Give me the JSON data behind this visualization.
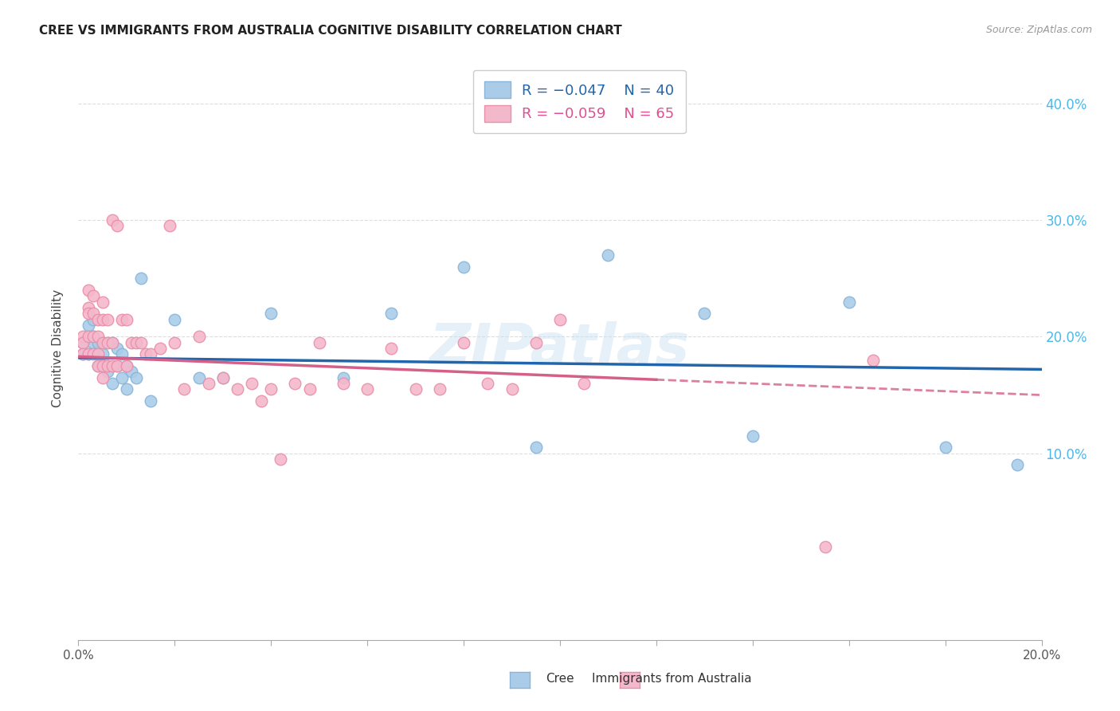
{
  "title": "CREE VS IMMIGRANTS FROM AUSTRALIA COGNITIVE DISABILITY CORRELATION CHART",
  "source": "Source: ZipAtlas.com",
  "xlabel_cree": "Cree",
  "xlabel_aus": "Immigrants from Australia",
  "ylabel": "Cognitive Disability",
  "xlim": [
    0.0,
    0.2
  ],
  "ylim": [
    -0.06,
    0.44
  ],
  "xticks": [
    0.0,
    0.02,
    0.04,
    0.06,
    0.08,
    0.1,
    0.12,
    0.14,
    0.16,
    0.18,
    0.2
  ],
  "xtick_labels": [
    "0.0%",
    "",
    "",
    "",
    "",
    "",
    "",
    "",
    "",
    "",
    "20.0%"
  ],
  "yticks_right": [
    0.1,
    0.2,
    0.3,
    0.4
  ],
  "legend_r_cree": "R = -0.047",
  "legend_n_cree": "N = 40",
  "legend_r_aus": "R = -0.059",
  "legend_n_aus": "N = 65",
  "color_cree": "#aacce8",
  "color_cree_line": "#8ab4d8",
  "color_aus": "#f4b8cc",
  "color_aus_line": "#e890a8",
  "color_trend_cree": "#2166ac",
  "color_trend_aus": "#d4608a",
  "color_right_axis": "#4db8e8",
  "color_title": "#222222",
  "color_source": "#999999",
  "background_color": "#ffffff",
  "grid_color": "#dddddd",
  "trend_cree_y0": 0.182,
  "trend_cree_y1": 0.172,
  "trend_aus_y0": 0.183,
  "trend_aus_y1": 0.15,
  "cree_x": [
    0.001,
    0.001,
    0.002,
    0.002,
    0.003,
    0.003,
    0.003,
    0.004,
    0.004,
    0.005,
    0.005,
    0.005,
    0.006,
    0.006,
    0.007,
    0.007,
    0.008,
    0.008,
    0.009,
    0.009,
    0.01,
    0.01,
    0.011,
    0.012,
    0.013,
    0.015,
    0.02,
    0.025,
    0.03,
    0.04,
    0.055,
    0.065,
    0.08,
    0.095,
    0.11,
    0.13,
    0.14,
    0.16,
    0.18,
    0.195
  ],
  "cree_y": [
    0.195,
    0.185,
    0.21,
    0.185,
    0.2,
    0.195,
    0.215,
    0.195,
    0.175,
    0.175,
    0.195,
    0.185,
    0.175,
    0.17,
    0.195,
    0.16,
    0.19,
    0.175,
    0.165,
    0.185,
    0.175,
    0.155,
    0.17,
    0.165,
    0.25,
    0.145,
    0.215,
    0.165,
    0.165,
    0.22,
    0.165,
    0.22,
    0.26,
    0.105,
    0.27,
    0.22,
    0.115,
    0.23,
    0.105,
    0.09
  ],
  "aus_x": [
    0.001,
    0.001,
    0.001,
    0.002,
    0.002,
    0.002,
    0.002,
    0.002,
    0.003,
    0.003,
    0.003,
    0.003,
    0.004,
    0.004,
    0.004,
    0.004,
    0.005,
    0.005,
    0.005,
    0.005,
    0.005,
    0.006,
    0.006,
    0.006,
    0.007,
    0.007,
    0.007,
    0.008,
    0.008,
    0.009,
    0.01,
    0.01,
    0.011,
    0.012,
    0.013,
    0.014,
    0.015,
    0.017,
    0.019,
    0.02,
    0.022,
    0.025,
    0.027,
    0.03,
    0.033,
    0.036,
    0.038,
    0.04,
    0.042,
    0.045,
    0.048,
    0.05,
    0.055,
    0.06,
    0.065,
    0.07,
    0.075,
    0.08,
    0.085,
    0.09,
    0.095,
    0.1,
    0.105,
    0.155,
    0.165
  ],
  "aus_y": [
    0.2,
    0.195,
    0.185,
    0.24,
    0.225,
    0.22,
    0.2,
    0.185,
    0.235,
    0.22,
    0.2,
    0.185,
    0.215,
    0.2,
    0.185,
    0.175,
    0.23,
    0.215,
    0.195,
    0.175,
    0.165,
    0.215,
    0.195,
    0.175,
    0.3,
    0.195,
    0.175,
    0.295,
    0.175,
    0.215,
    0.215,
    0.175,
    0.195,
    0.195,
    0.195,
    0.185,
    0.185,
    0.19,
    0.295,
    0.195,
    0.155,
    0.2,
    0.16,
    0.165,
    0.155,
    0.16,
    0.145,
    0.155,
    0.095,
    0.16,
    0.155,
    0.195,
    0.16,
    0.155,
    0.19,
    0.155,
    0.155,
    0.195,
    0.16,
    0.155,
    0.195,
    0.215,
    0.16,
    0.02,
    0.18
  ]
}
